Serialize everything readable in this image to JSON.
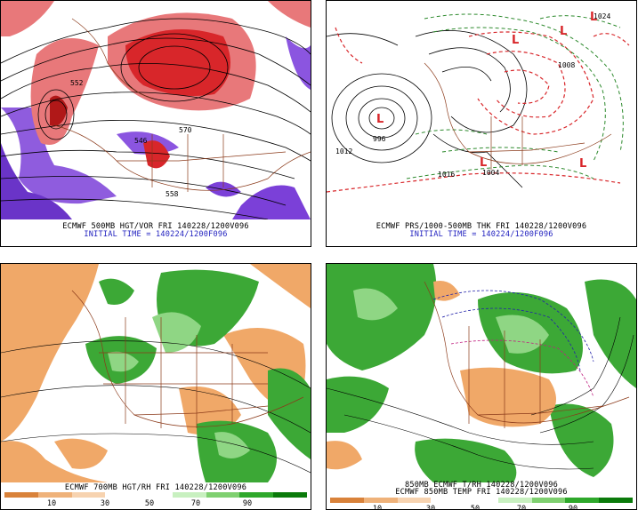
{
  "panels": {
    "tl": {
      "caption1": "ECMWF 500MB HGT/VOR FRI 140228/1200V096",
      "caption2": "INITIAL TIME = 140224/1200F096",
      "contour_labels": [
        "552",
        "546",
        "570",
        "558"
      ]
    },
    "tr": {
      "caption1": "ECMWF PRS/1000-500MB THK FRI 140228/1200V096",
      "caption2": "INITIAL TIME = 140224/1200F096",
      "contour_labels": [
        "996",
        "1012",
        "1004",
        "1008",
        "1016",
        "1024"
      ],
      "low_symbol": "L"
    },
    "bl": {
      "caption1": "ECMWF 700MB HGT/RH FRI 140228/1200V096",
      "colorbar_labels": [
        "10",
        "30",
        "50",
        "70",
        "90"
      ]
    },
    "br": {
      "caption1": "850MB ECMWF T/RH 140228/1200V096",
      "caption2": "ECMWF 850MB TEMP FRI 140228/1200V096",
      "colorbar_labels": [
        "10",
        "30",
        "50",
        "70",
        "90"
      ]
    }
  },
  "colors": {
    "caption_black": "#000000",
    "caption_blue": "#1f1fbf",
    "vorticity_red": "#d8262a",
    "vorticity_purple": "#7b40d8",
    "rh_green": "#31a02c",
    "dry_orange": "#e8a060",
    "thickness_red": "#d8262a",
    "thickness_green": "#2d8a2d",
    "border_brown": "#8b3a1a"
  },
  "colorbar_colors": [
    "#d9823a",
    "#efb27a",
    "#f7d3b0",
    "#ffffff",
    "#ffffff",
    "#c8f0c0",
    "#7fd070",
    "#2ea82b",
    "#0a7a0a"
  ]
}
